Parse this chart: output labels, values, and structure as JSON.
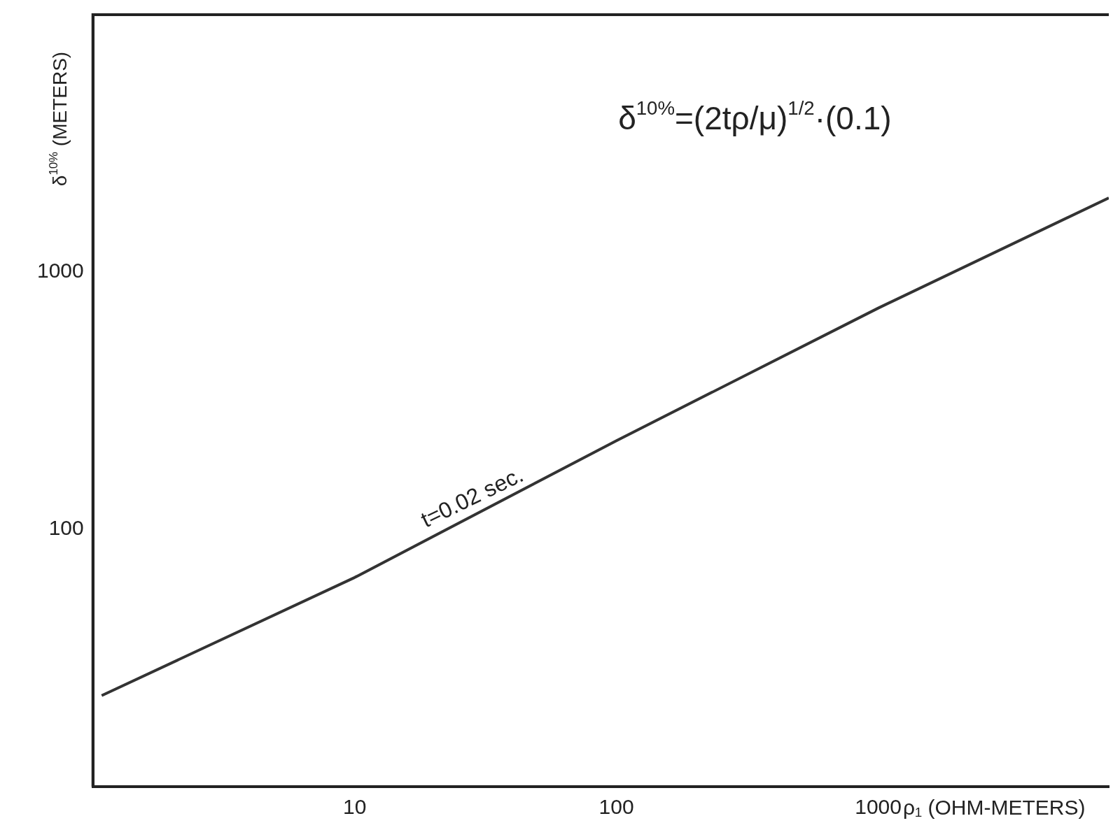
{
  "chart_data": {
    "type": "line",
    "xlabel": "ρ₁ (OHM-METERS)",
    "ylabel": "δ$^{10%}$ (METERS)",
    "annotations": [
      "δ$^{10%}$=(2tρ/μ)$^{1/2}$·(0.1)",
      {
        "text": "t=0.02 sec.",
        "x": 30,
        "y": 116
      }
    ],
    "series": [
      {
        "color": "#333333",
        "x": [
          1.08,
          10,
          100,
          1000,
          7600
        ],
        "values": [
          22.6,
          65,
          221,
          724,
          1940
        ]
      }
    ],
    "xlim": [
      1,
      7600
    ],
    "ylim": [
      10,
      10000
    ],
    "xticks": [
      10,
      100,
      1000
    ],
    "yticks": [
      100,
      1000
    ],
    "log": "xy",
    "grid": false,
    "legend": false,
    "marker": "none",
    "line_style": "solid"
  }
}
